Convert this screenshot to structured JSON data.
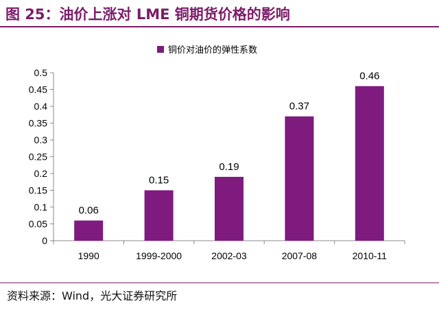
{
  "figure": {
    "title": "图 25：油价上涨对 LME 铜期货价格的影响",
    "source": "资料来源：Wind，光大证券研究所"
  },
  "colors": {
    "brand": "#7b1c6a",
    "bar": "#7f1a7e"
  },
  "chart_data": {
    "type": "bar",
    "categories": [
      "1990",
      "1999-2000",
      "2002-03",
      "2007-08",
      "2010-11"
    ],
    "series": [
      {
        "name": "铜价对油价的弹性系数",
        "values": [
          0.06,
          0.15,
          0.19,
          0.37,
          0.46
        ]
      }
    ],
    "data_labels": [
      "0.06",
      "0.15",
      "0.19",
      "0.37",
      "0.46"
    ],
    "y_ticks": [
      "0",
      "0.05",
      "0.1",
      "0.15",
      "0.2",
      "0.25",
      "0.3",
      "0.35",
      "0.4",
      "0.45",
      "0.5"
    ],
    "ylim": [
      0,
      0.5
    ],
    "grid": false,
    "legend_position": "top-center"
  }
}
